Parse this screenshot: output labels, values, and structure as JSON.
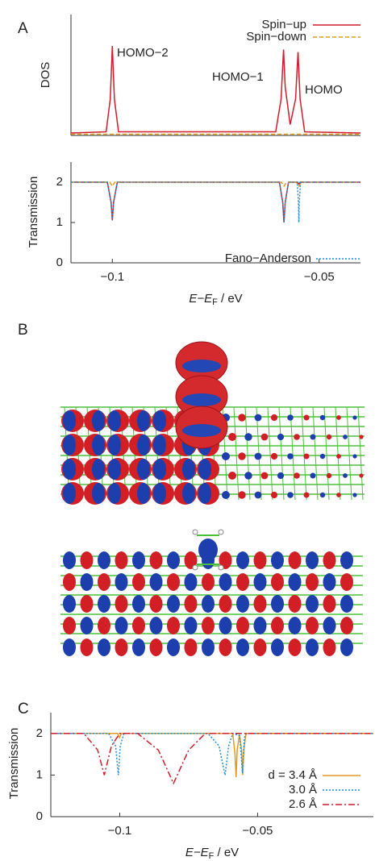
{
  "panel_labels": [
    "A",
    "B",
    "C"
  ],
  "chart_data": [
    {
      "type": "line",
      "ylabel": "DOS",
      "xlim": [
        -0.11,
        -0.04
      ],
      "ylim": [
        0,
        1
      ],
      "annotations": [
        "HOMO−2",
        "HOMO−1",
        "HOMO"
      ],
      "series": [
        {
          "name": "Spin−up",
          "color": "#d01c2c",
          "style": "solid",
          "x": [
            -0.11,
            -0.1015,
            -0.1005,
            -0.1,
            -0.0995,
            -0.0985,
            -0.0605,
            -0.0592,
            -0.0586,
            -0.0582,
            -0.057,
            -0.0557,
            -0.0551,
            -0.0546,
            -0.0535,
            -0.04
          ],
          "values": [
            0.02,
            0.03,
            0.3,
            0.74,
            0.3,
            0.03,
            0.03,
            0.3,
            0.71,
            0.4,
            0.09,
            0.3,
            0.69,
            0.3,
            0.03,
            0.02
          ]
        },
        {
          "name": "Spin−down",
          "color": "#e09b20",
          "style": "dashed",
          "x": [
            -0.11,
            -0.04
          ],
          "values": [
            0.01,
            0.01
          ]
        }
      ]
    },
    {
      "type": "line",
      "ylabel": "Transmission",
      "xlabel": {
        "var": "E−E",
        "sub": "F",
        "unit": " / eV"
      },
      "xlim": [
        -0.11,
        -0.04
      ],
      "ylim": [
        0,
        2.5
      ],
      "yticks": [
        0,
        1,
        2
      ],
      "xticks": [
        {
          "value": -0.1,
          "label": "−0.1"
        },
        {
          "value": -0.05,
          "label": "−0.05"
        }
      ],
      "series": [
        {
          "name": "Spin−up",
          "color": "#d01c2c",
          "style": "solid",
          "legend": false,
          "x": [
            -0.11,
            -0.1012,
            -0.1003,
            -0.1,
            -0.0997,
            -0.0988,
            -0.0596,
            -0.0588,
            -0.0585,
            -0.0582,
            -0.0574,
            -0.0552,
            -0.0549,
            -0.0546,
            -0.04
          ],
          "values": [
            2,
            2,
            1.5,
            1.05,
            1.5,
            2,
            2,
            1.5,
            1.0,
            1.5,
            2,
            2,
            1.95,
            2,
            2
          ]
        },
        {
          "name": "Spin−down",
          "color": "#e09b20",
          "style": "dashed",
          "legend": false,
          "x": [
            -0.11,
            -0.1006,
            -0.1,
            -0.0994,
            -0.0591,
            -0.0585,
            -0.0579,
            -0.0555,
            -0.0549,
            -0.0543,
            -0.04
          ],
          "values": [
            2,
            2,
            1.9,
            2,
            2,
            1.9,
            2,
            2,
            1.9,
            2,
            2
          ]
        },
        {
          "name": "Fano−Anderson",
          "color": "#1f8fd8",
          "style": "dotted",
          "x": [
            -0.11,
            -0.1012,
            -0.1003,
            -0.1,
            -0.0997,
            -0.0988,
            -0.0596,
            -0.0588,
            -0.0585,
            -0.0582,
            -0.0574,
            -0.0553,
            -0.055,
            -0.0549,
            -0.0548,
            -0.0545,
            -0.04
          ],
          "values": [
            2,
            2,
            1.5,
            1.05,
            1.5,
            2,
            2,
            1.5,
            1.0,
            1.5,
            2,
            2,
            1.5,
            1.0,
            1.5,
            2,
            2
          ]
        }
      ]
    },
    {
      "type": "line",
      "ylabel": "Transmission",
      "xlabel": {
        "var": "E−E",
        "sub": "F",
        "unit": " / eV"
      },
      "xlim": [
        -0.125,
        -0.008
      ],
      "ylim": [
        0,
        2.5
      ],
      "yticks": [
        0,
        1,
        2
      ],
      "xticks": [
        {
          "value": -0.1,
          "label": "−0.1"
        },
        {
          "value": -0.05,
          "label": "−0.05"
        }
      ],
      "series": [
        {
          "name": "d = 3.4 Å",
          "color": "#e09b20",
          "style": "solid",
          "x": [
            -0.125,
            -0.1008,
            -0.1001,
            -0.0994,
            -0.059,
            -0.0582,
            -0.0578,
            -0.0574,
            -0.0566,
            -0.0558,
            -0.0554,
            -0.055,
            -0.0542,
            -0.008
          ],
          "values": [
            2,
            2,
            1.9,
            2,
            2,
            1.5,
            0.95,
            1.6,
            1.97,
            1.6,
            1.0,
            1.6,
            2,
            2
          ]
        },
        {
          "name": "3.0 Å",
          "color": "#1f8fd8",
          "style": "dotted",
          "x": [
            -0.125,
            -0.104,
            -0.1015,
            -0.1005,
            -0.0998,
            -0.0985,
            -0.068,
            -0.064,
            -0.0618,
            -0.0605,
            -0.059,
            -0.0565,
            -0.0555,
            -0.0548,
            -0.054,
            -0.008
          ],
          "values": [
            2,
            2,
            1.7,
            1.0,
            1.7,
            2,
            2,
            1.7,
            1.0,
            1.7,
            2,
            1.95,
            1.05,
            1.9,
            2,
            2
          ]
        },
        {
          "name": "2.6 Å",
          "color": "#d01c2c",
          "style": "dashdot",
          "x": [
            -0.125,
            -0.113,
            -0.108,
            -0.1056,
            -0.103,
            -0.1,
            -0.0935,
            -0.086,
            -0.0805,
            -0.075,
            -0.069,
            -0.008
          ],
          "values": [
            2,
            2,
            1.6,
            1.0,
            1.7,
            2,
            2,
            1.6,
            0.8,
            1.6,
            2,
            2
          ]
        }
      ]
    }
  ]
}
